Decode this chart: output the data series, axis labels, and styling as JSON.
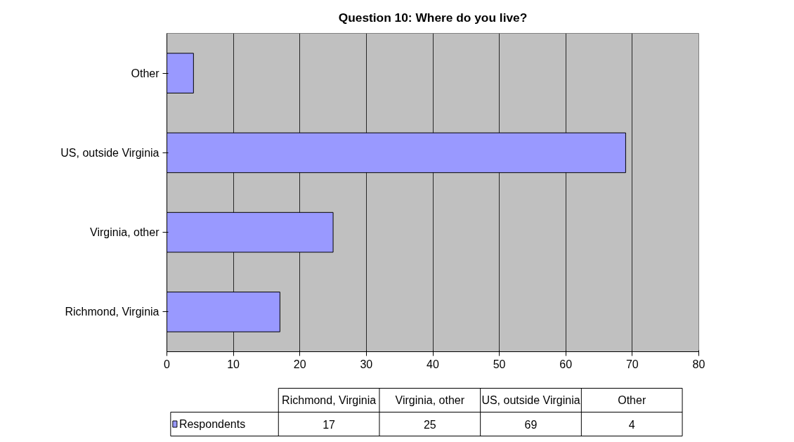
{
  "chart_data": {
    "type": "bar",
    "orientation": "horizontal",
    "title": "Question 10: Where do you live?",
    "categories": [
      "Other",
      "US, outside Virginia",
      "Virginia, other",
      "Richmond, Virginia"
    ],
    "series": [
      {
        "name": "Respondents",
        "color": "#9999ff",
        "values": [
          4,
          69,
          25,
          17
        ]
      }
    ],
    "annotations": [
      "17",
      "25",
      "69",
      "4"
    ],
    "xlim": [
      0,
      80
    ],
    "xticks": [
      0,
      10,
      20,
      30,
      40,
      50,
      60,
      70,
      80
    ],
    "grid": "x",
    "legend": "bottom"
  }
}
